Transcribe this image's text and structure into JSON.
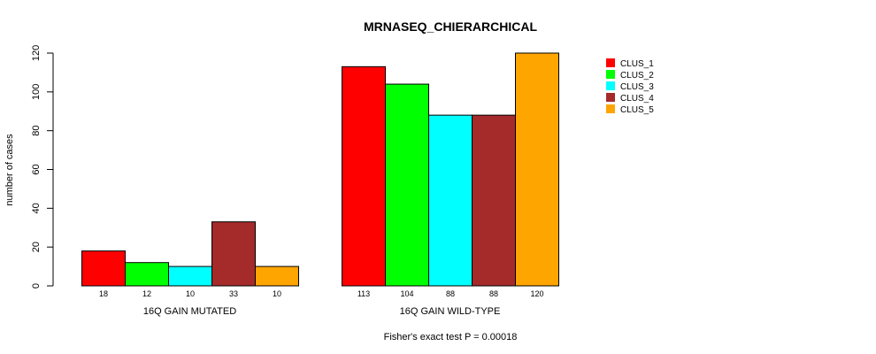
{
  "chart_data": {
    "type": "bar",
    "title": "MRNASEQ_CHIERARCHICAL",
    "ylabel": "number of cases",
    "xlabel": "",
    "ylim": [
      0,
      120
    ],
    "yticks": [
      0,
      20,
      40,
      60,
      80,
      100,
      120
    ],
    "footnote": "Fisher's exact test P = 0.00018",
    "legend_position": "top-right",
    "colors": [
      "#ff0000",
      "#00ff00",
      "#00ffff",
      "#a52a2a",
      "#ffa500"
    ],
    "series_names": [
      "CLUS_1",
      "CLUS_2",
      "CLUS_3",
      "CLUS_4",
      "CLUS_5"
    ],
    "groups": [
      {
        "label": "16Q GAIN MUTATED",
        "values": [
          18,
          12,
          10,
          33,
          10
        ]
      },
      {
        "label": "16Q GAIN WILD-TYPE",
        "values": [
          113,
          104,
          88,
          88,
          120
        ]
      }
    ]
  }
}
